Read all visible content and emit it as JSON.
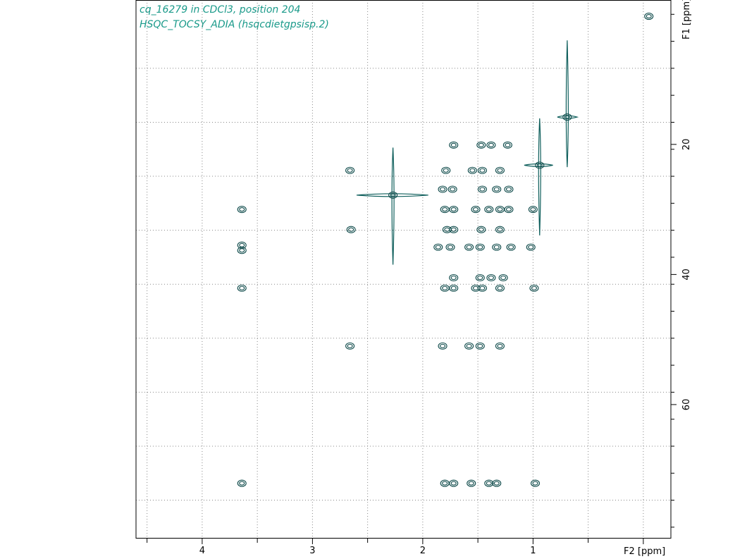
{
  "title": {
    "line1": "cq_16279 in CDCl3, position 204",
    "line2": "HSQC_TOCSY_ADIA (hsqcdietgpsisp.2)"
  },
  "colors": {
    "title_text": "#1a9a8a",
    "contour_dark": "#0e4a4a",
    "contour_teal": "#0f5f5c",
    "grid": "#888888"
  },
  "chart_data": {
    "type": "scatter",
    "subtype": "2D NMR contour plot",
    "xlabel": "F2 [ppm]",
    "ylabel": "F1 [ppm]",
    "xlim": [
      4.6,
      -0.25
    ],
    "ylim": [
      -2.2,
      80.6
    ],
    "x_reversed": true,
    "y_increases_downward": true,
    "x_ticks": [
      4,
      3,
      2,
      1
    ],
    "y_ticks": [
      20,
      40,
      60
    ],
    "grid": true,
    "peaks": [
      {
        "x": -0.05,
        "y": 0.3
      },
      {
        "x": 0.69,
        "y": 15.8
      },
      {
        "x": 0.94,
        "y": 23.2
      },
      {
        "x": 2.27,
        "y": 27.8
      },
      {
        "x": 1.72,
        "y": 20.1
      },
      {
        "x": 1.47,
        "y": 20.1
      },
      {
        "x": 1.38,
        "y": 20.1
      },
      {
        "x": 1.23,
        "y": 20.1
      },
      {
        "x": 2.66,
        "y": 24.0
      },
      {
        "x": 1.79,
        "y": 24.0
      },
      {
        "x": 1.55,
        "y": 24.0
      },
      {
        "x": 1.46,
        "y": 24.0
      },
      {
        "x": 1.3,
        "y": 24.0
      },
      {
        "x": 1.82,
        "y": 26.9
      },
      {
        "x": 1.73,
        "y": 26.9
      },
      {
        "x": 1.46,
        "y": 26.9
      },
      {
        "x": 1.33,
        "y": 26.9
      },
      {
        "x": 1.22,
        "y": 26.9
      },
      {
        "x": 3.64,
        "y": 30.0
      },
      {
        "x": 1.8,
        "y": 30.0
      },
      {
        "x": 1.72,
        "y": 30.0
      },
      {
        "x": 1.52,
        "y": 30.0
      },
      {
        "x": 1.4,
        "y": 30.0
      },
      {
        "x": 1.3,
        "y": 30.0
      },
      {
        "x": 1.22,
        "y": 30.0
      },
      {
        "x": 1.0,
        "y": 30.0
      },
      {
        "x": 2.65,
        "y": 33.1
      },
      {
        "x": 1.78,
        "y": 33.1
      },
      {
        "x": 1.72,
        "y": 33.1
      },
      {
        "x": 1.47,
        "y": 33.1
      },
      {
        "x": 1.3,
        "y": 33.1
      },
      {
        "x": 3.64,
        "y": 35.5
      },
      {
        "x": 3.64,
        "y": 36.3
      },
      {
        "x": 1.86,
        "y": 35.8
      },
      {
        "x": 1.75,
        "y": 35.8
      },
      {
        "x": 1.58,
        "y": 35.8
      },
      {
        "x": 1.48,
        "y": 35.8
      },
      {
        "x": 1.33,
        "y": 35.8
      },
      {
        "x": 1.2,
        "y": 35.8
      },
      {
        "x": 1.02,
        "y": 35.8
      },
      {
        "x": 1.72,
        "y": 40.5
      },
      {
        "x": 1.48,
        "y": 40.5
      },
      {
        "x": 1.38,
        "y": 40.5
      },
      {
        "x": 1.27,
        "y": 40.5
      },
      {
        "x": 3.64,
        "y": 42.1
      },
      {
        "x": 1.8,
        "y": 42.1
      },
      {
        "x": 1.72,
        "y": 42.1
      },
      {
        "x": 1.52,
        "y": 42.1
      },
      {
        "x": 1.46,
        "y": 42.1
      },
      {
        "x": 1.3,
        "y": 42.1
      },
      {
        "x": 0.99,
        "y": 42.1
      },
      {
        "x": 2.66,
        "y": 51.0
      },
      {
        "x": 1.82,
        "y": 51.0
      },
      {
        "x": 1.58,
        "y": 51.0
      },
      {
        "x": 1.48,
        "y": 51.0
      },
      {
        "x": 1.3,
        "y": 51.0
      },
      {
        "x": 3.64,
        "y": 72.1
      },
      {
        "x": 1.8,
        "y": 72.1
      },
      {
        "x": 1.72,
        "y": 72.1
      },
      {
        "x": 1.56,
        "y": 72.1
      },
      {
        "x": 1.4,
        "y": 72.1
      },
      {
        "x": 1.33,
        "y": 72.1
      },
      {
        "x": 0.98,
        "y": 72.1
      }
    ]
  }
}
